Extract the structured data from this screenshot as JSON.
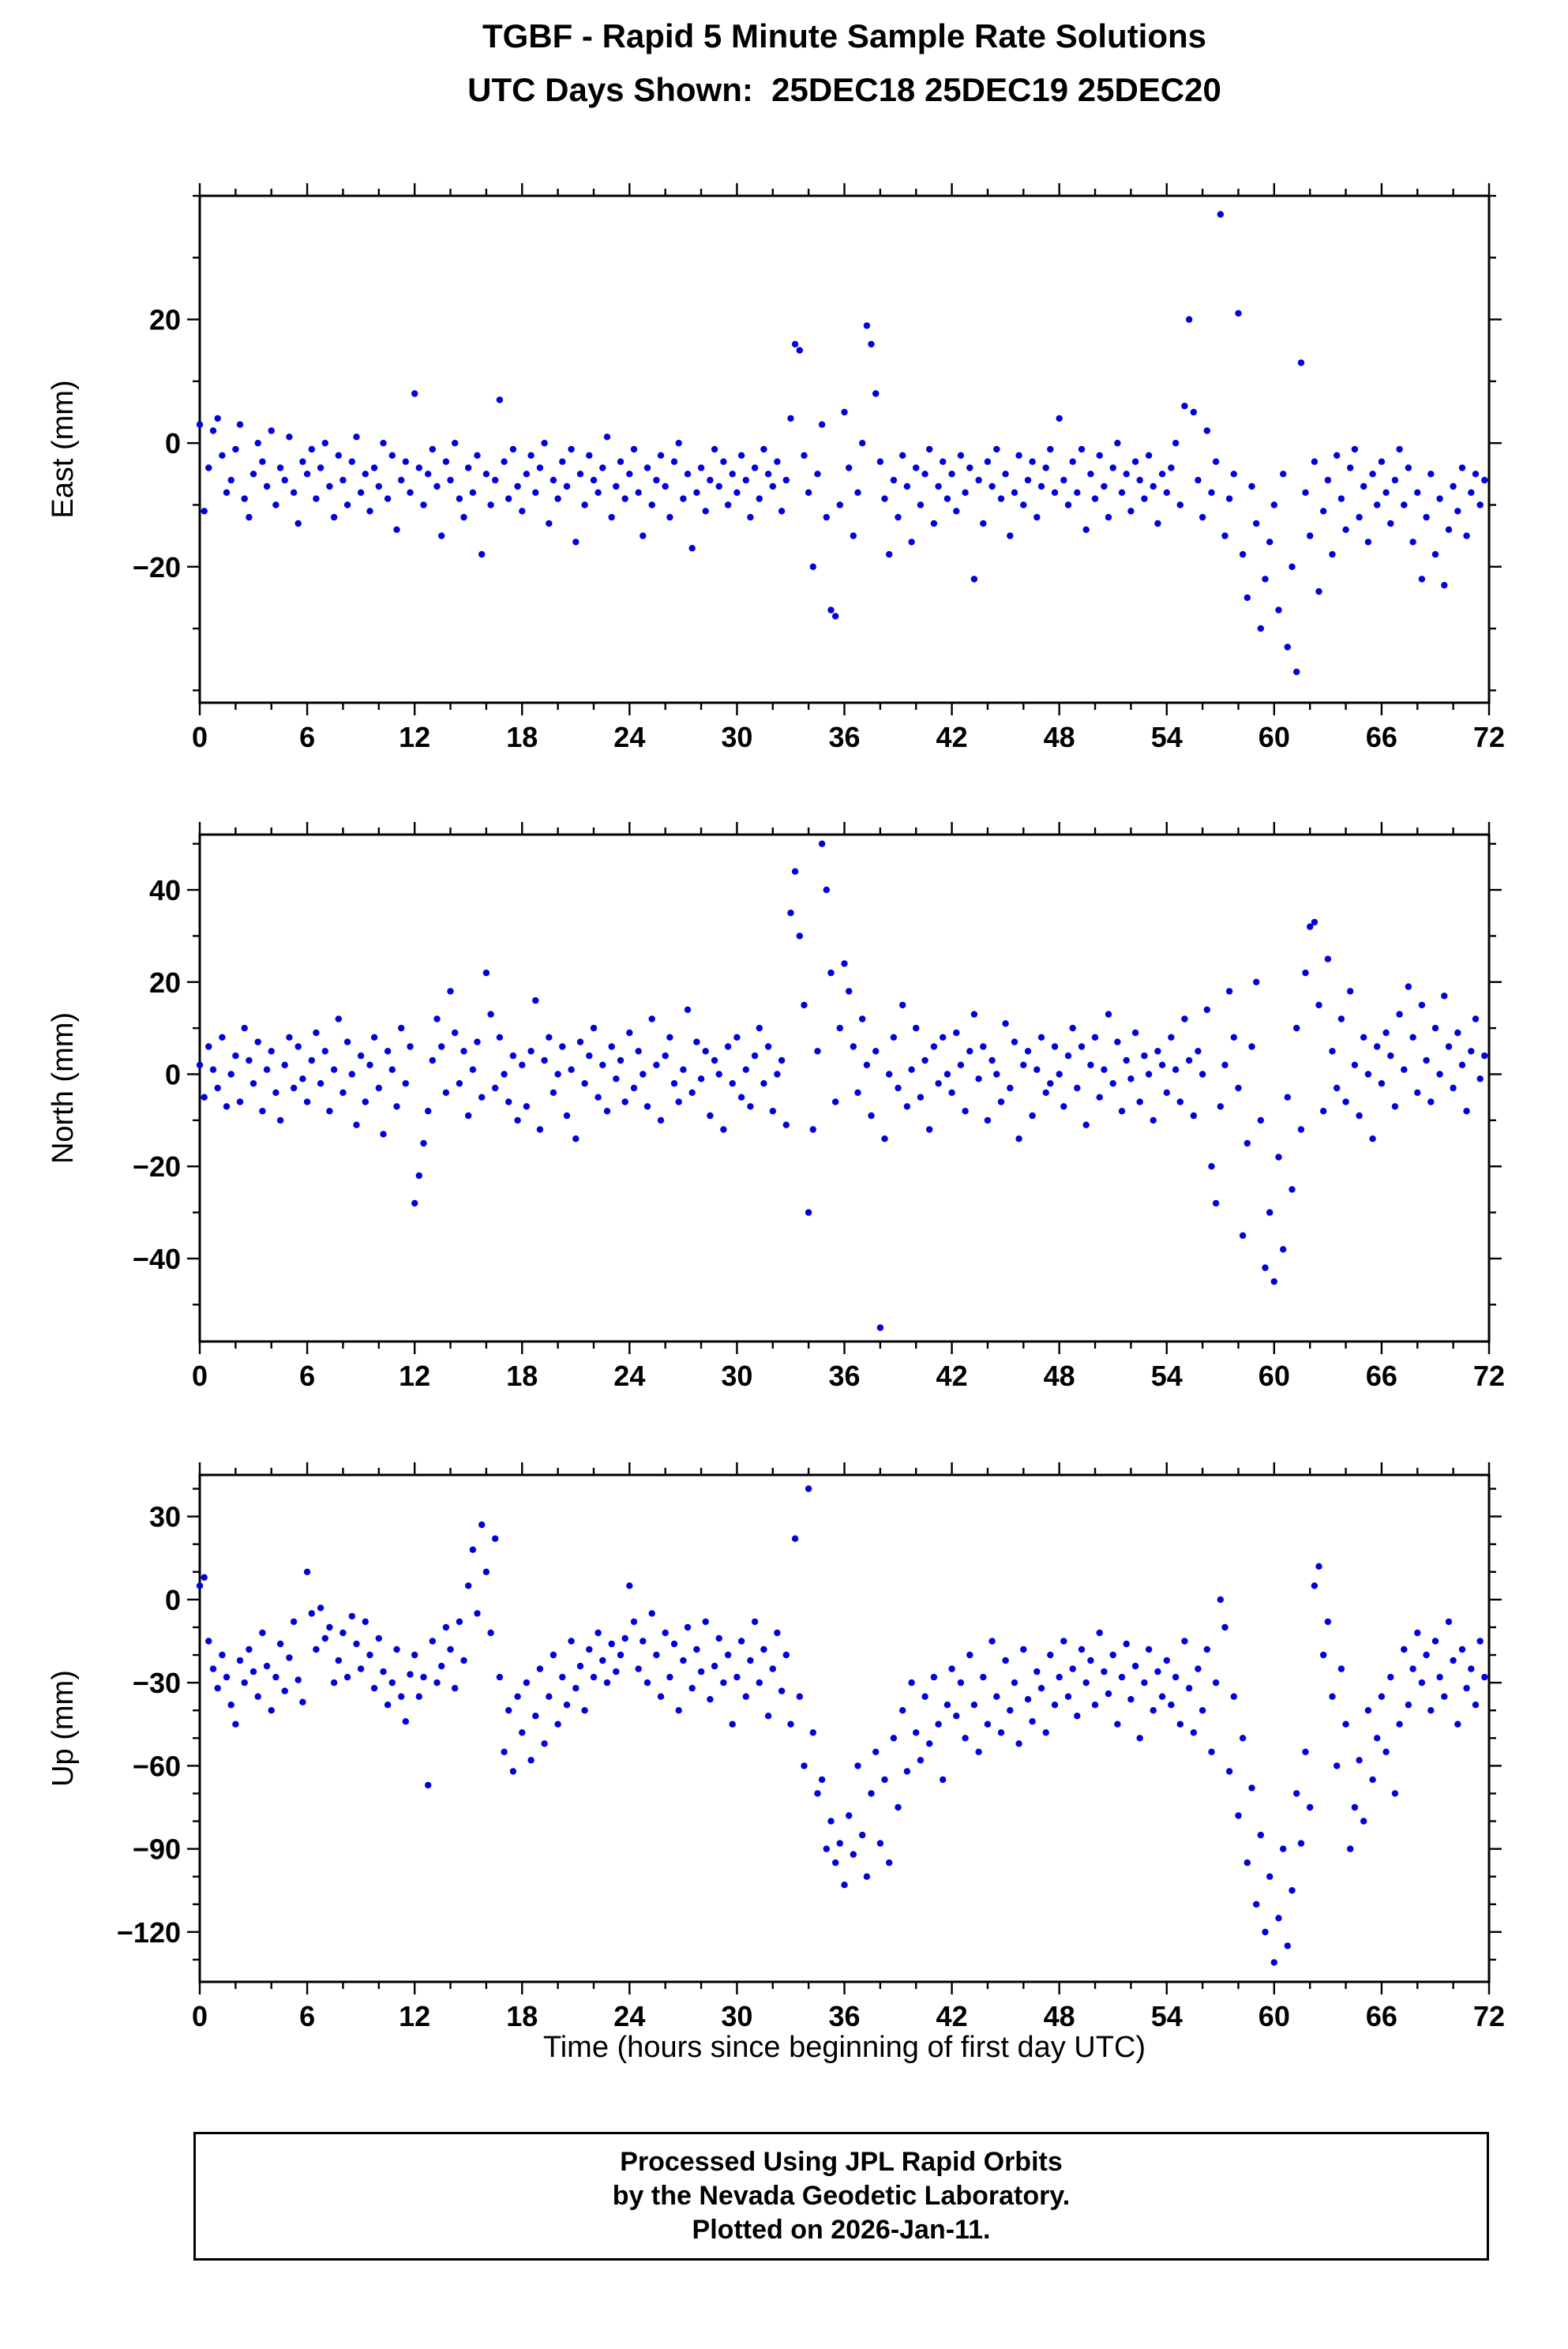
{
  "header": {
    "title": "TGBF - Rapid 5 Minute Sample Rate Solutions",
    "subtitle": "UTC Days Shown:  25DEC18 25DEC19 25DEC20"
  },
  "x_axis_title": "Time (hours since beginning of first day UTC)",
  "footer": {
    "line1": "Processed Using JPL Rapid Orbits",
    "line2": "by the Nevada Geodetic Laboratory.",
    "line3": "Plotted on 2026-Jan-11."
  },
  "style": {
    "marker_color": "#0000dd",
    "axis_color": "#000000"
  },
  "chart_data": [
    {
      "type": "scatter",
      "ylabel": "East (mm)",
      "xlim": [
        0,
        72
      ],
      "ylim": [
        -42,
        40
      ],
      "xticks": [
        0,
        6,
        12,
        18,
        24,
        30,
        36,
        42,
        48,
        54,
        60,
        66,
        72
      ],
      "xtick_minor": 2,
      "yticks": [
        -20,
        0,
        20
      ],
      "ytick_minor": 10,
      "x0": 0,
      "dx": 0.25,
      "y": [
        3,
        -11,
        -4,
        2,
        4,
        -2,
        -8,
        -6,
        -1,
        3,
        -9,
        -12,
        -5,
        0,
        -3,
        -7,
        2,
        -10,
        -4,
        -6,
        1,
        -8,
        -13,
        -3,
        -5,
        -1,
        -9,
        -4,
        0,
        -7,
        -12,
        -2,
        -6,
        -10,
        -3,
        1,
        -8,
        -5,
        -11,
        -4,
        -7,
        0,
        -9,
        -2,
        -14,
        -6,
        -3,
        -8,
        8,
        -4,
        -10,
        -5,
        -1,
        -7,
        -15,
        -3,
        -6,
        0,
        -9,
        -12,
        -4,
        -8,
        -2,
        -18,
        -5,
        -10,
        -6,
        7,
        -3,
        -9,
        -1,
        -7,
        -11,
        -5,
        -2,
        -8,
        -4,
        0,
        -13,
        -6,
        -9,
        -3,
        -7,
        -1,
        -16,
        -5,
        -10,
        -2,
        -6,
        -8,
        -4,
        1,
        -12,
        -7,
        -3,
        -9,
        -5,
        -1,
        -8,
        -15,
        -4,
        -10,
        -6,
        -2,
        -7,
        -12,
        -3,
        0,
        -9,
        -5,
        -17,
        -8,
        -4,
        -11,
        -6,
        -1,
        -7,
        -3,
        -10,
        -5,
        -8,
        -2,
        -6,
        -12,
        -4,
        -9,
        -1,
        -5,
        -7,
        -3,
        -11,
        -6,
        4,
        16,
        15,
        -2,
        -8,
        -20,
        -5,
        3,
        -12,
        -27,
        -28,
        -10,
        5,
        -4,
        -15,
        -8,
        0,
        19,
        16,
        8,
        -3,
        -9,
        -18,
        -6,
        -12,
        -2,
        -7,
        -16,
        -4,
        -10,
        -5,
        -1,
        -13,
        -7,
        -3,
        -9,
        -5,
        -11,
        -2,
        -8,
        -4,
        -22,
        -6,
        -13,
        -3,
        -7,
        -1,
        -9,
        -5,
        -15,
        -8,
        -2,
        -10,
        -6,
        -3,
        -12,
        -7,
        -4,
        -1,
        -8,
        4,
        -6,
        -10,
        -3,
        -8,
        -1,
        -14,
        -5,
        -9,
        -2,
        -7,
        -12,
        -4,
        0,
        -8,
        -5,
        -11,
        -3,
        -6,
        -9,
        -2,
        -7,
        -13,
        -5,
        -8,
        -4,
        0,
        -10,
        6,
        20,
        5,
        -6,
        -12,
        2,
        -8,
        -3,
        37,
        -15,
        -9,
        -5,
        21,
        -18,
        -25,
        -7,
        -13,
        -30,
        -22,
        -16,
        -10,
        -27,
        -5,
        -33,
        -20,
        -37,
        13,
        -8,
        -15,
        -3,
        -24,
        -11,
        -6,
        -18,
        -2,
        -9,
        -14,
        -4,
        -1,
        -12,
        -7,
        -16,
        -5,
        -10,
        -3,
        -8,
        -13,
        -6,
        -1,
        -10,
        -4,
        -16,
        -8,
        -22,
        -12,
        -5,
        -18,
        -9,
        -23,
        -14,
        -7,
        -11,
        -4,
        -15,
        -8,
        -5,
        -10,
        -6
      ]
    },
    {
      "type": "scatter",
      "ylabel": "North (mm)",
      "xlim": [
        0,
        72
      ],
      "ylim": [
        -58,
        52
      ],
      "xticks": [
        0,
        6,
        12,
        18,
        24,
        30,
        36,
        42,
        48,
        54,
        60,
        66,
        72
      ],
      "xtick_minor": 2,
      "yticks": [
        -40,
        -20,
        0,
        20,
        40
      ],
      "ytick_minor": 10,
      "x0": 0,
      "dx": 0.25,
      "y": [
        2,
        -5,
        6,
        1,
        -3,
        8,
        -7,
        0,
        4,
        -6,
        10,
        3,
        -2,
        7,
        -8,
        1,
        5,
        -4,
        -10,
        2,
        8,
        -3,
        6,
        -1,
        -6,
        3,
        9,
        -2,
        5,
        -8,
        1,
        12,
        -4,
        7,
        0,
        -11,
        4,
        -6,
        2,
        8,
        -3,
        -13,
        5,
        1,
        -7,
        10,
        -2,
        6,
        -28,
        -22,
        -15,
        -8,
        3,
        12,
        6,
        -4,
        18,
        9,
        -2,
        5,
        -9,
        1,
        7,
        -5,
        22,
        13,
        -3,
        8,
        0,
        -6,
        4,
        -10,
        2,
        -7,
        5,
        16,
        -12,
        3,
        8,
        -4,
        0,
        6,
        -9,
        1,
        -14,
        7,
        -2,
        4,
        10,
        -5,
        2,
        -8,
        6,
        -1,
        3,
        -6,
        9,
        -3,
        5,
        0,
        -7,
        12,
        2,
        -10,
        4,
        8,
        -2,
        -6,
        1,
        14,
        -4,
        7,
        -1,
        5,
        -9,
        3,
        0,
        -12,
        6,
        -2,
        8,
        -5,
        1,
        -7,
        4,
        10,
        -2,
        6,
        -8,
        0,
        3,
        -11,
        35,
        44,
        30,
        15,
        -30,
        -12,
        5,
        50,
        40,
        22,
        -6,
        10,
        24,
        18,
        6,
        -4,
        12,
        2,
        -9,
        5,
        -55,
        -14,
        0,
        8,
        -3,
        15,
        -7,
        1,
        10,
        -5,
        3,
        -12,
        6,
        -2,
        8,
        0,
        -4,
        9,
        2,
        -8,
        5,
        13,
        -1,
        6,
        -10,
        3,
        0,
        -6,
        11,
        -3,
        7,
        -14,
        2,
        5,
        -9,
        1,
        8,
        -4,
        -2,
        6,
        0,
        -7,
        4,
        10,
        -3,
        6,
        -11,
        2,
        8,
        -5,
        1,
        13,
        -2,
        7,
        -8,
        3,
        -1,
        9,
        -6,
        4,
        0,
        -10,
        5,
        2,
        -4,
        8,
        1,
        -6,
        12,
        3,
        -9,
        5,
        0,
        14,
        -20,
        -28,
        -7,
        2,
        18,
        8,
        -3,
        -35,
        -15,
        6,
        20,
        -10,
        -42,
        -30,
        -45,
        -18,
        -38,
        -5,
        -25,
        10,
        -12,
        22,
        32,
        33,
        15,
        -8,
        25,
        5,
        -3,
        12,
        -6,
        18,
        2,
        -9,
        8,
        0,
        -14,
        6,
        -2,
        9,
        4,
        -7,
        13,
        1,
        19,
        8,
        -4,
        15,
        3,
        -6,
        10,
        0,
        17,
        6,
        -3,
        9,
        2,
        -8,
        5,
        12,
        -1,
        4
      ]
    },
    {
      "type": "scatter",
      "ylabel": "Up (mm)",
      "xlim": [
        0,
        72
      ],
      "ylim": [
        -138,
        45
      ],
      "xticks": [
        0,
        6,
        12,
        18,
        24,
        30,
        36,
        42,
        48,
        54,
        60,
        66,
        72
      ],
      "xtick_minor": 2,
      "yticks": [
        -120,
        -90,
        -60,
        -30,
        0,
        30
      ],
      "ytick_minor": 10,
      "x0": 0,
      "dx": 0.25,
      "y": [
        5,
        8,
        -15,
        -25,
        -32,
        -20,
        -28,
        -38,
        -45,
        -22,
        -30,
        -18,
        -26,
        -35,
        -12,
        -24,
        -40,
        -28,
        -16,
        -33,
        -21,
        -8,
        -29,
        -37,
        10,
        -5,
        -18,
        -3,
        -14,
        -10,
        -30,
        -22,
        -12,
        -28,
        -6,
        -16,
        -25,
        -8,
        -20,
        -32,
        -14,
        -26,
        -38,
        -30,
        -18,
        -35,
        -44,
        -27,
        -20,
        -35,
        -28,
        -67,
        -15,
        -30,
        -24,
        -10,
        -18,
        -32,
        -8,
        -22,
        5,
        18,
        -5,
        27,
        10,
        -12,
        22,
        -28,
        -55,
        -40,
        -62,
        -35,
        -48,
        -30,
        -58,
        -42,
        -25,
        -52,
        -35,
        -20,
        -45,
        -28,
        -38,
        -15,
        -32,
        -24,
        -40,
        -18,
        -28,
        -12,
        -22,
        -30,
        -16,
        -26,
        -20,
        -14,
        5,
        -8,
        -25,
        -15,
        -30,
        -5,
        -20,
        -35,
        -12,
        -28,
        -16,
        -40,
        -22,
        -10,
        -32,
        -18,
        -26,
        -8,
        -36,
        -24,
        -14,
        -30,
        -20,
        -45,
        -28,
        -15,
        -35,
        -22,
        -8,
        -30,
        -18,
        -42,
        -25,
        -12,
        -33,
        -20,
        -45,
        22,
        -35,
        -60,
        40,
        -48,
        -70,
        -65,
        -90,
        -80,
        -95,
        -88,
        -103,
        -78,
        -92,
        -60,
        -85,
        -100,
        -70,
        -55,
        -88,
        -65,
        -95,
        -50,
        -75,
        -40,
        -62,
        -30,
        -48,
        -58,
        -35,
        -52,
        -28,
        -45,
        -65,
        -38,
        -25,
        -42,
        -30,
        -50,
        -20,
        -38,
        -55,
        -28,
        -45,
        -15,
        -35,
        -48,
        -22,
        -40,
        -30,
        -52,
        -18,
        -36,
        -44,
        -26,
        -32,
        -48,
        -20,
        -38,
        -28,
        -15,
        -35,
        -25,
        -42,
        -18,
        -30,
        -22,
        -38,
        -12,
        -26,
        -34,
        -20,
        -45,
        -28,
        -16,
        -36,
        -24,
        -50,
        -30,
        -18,
        -40,
        -26,
        -35,
        -22,
        -38,
        -28,
        -45,
        -15,
        -32,
        -48,
        -25,
        -40,
        -18,
        -55,
        -30,
        0,
        -10,
        -62,
        -35,
        -78,
        -50,
        -95,
        -68,
        -110,
        -85,
        -120,
        -100,
        -131,
        -115,
        -90,
        -125,
        -105,
        -70,
        -88,
        -55,
        -75,
        5,
        12,
        -20,
        -8,
        -35,
        -60,
        -25,
        -45,
        -90,
        -75,
        -58,
        -80,
        -40,
        -65,
        -50,
        -35,
        -55,
        -28,
        -70,
        -45,
        -18,
        -38,
        -25,
        -12,
        -30,
        -20,
        -40,
        -15,
        -28,
        -35,
        -8,
        -22,
        -45,
        -18,
        -32,
        -25,
        -38,
        -15,
        -28
      ]
    }
  ]
}
